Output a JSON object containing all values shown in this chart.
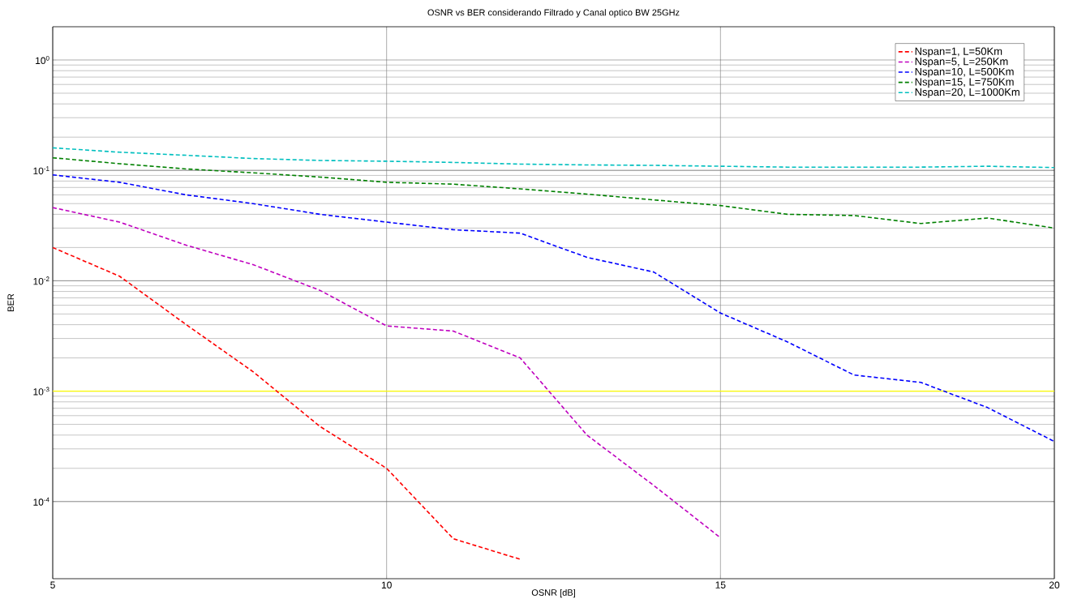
{
  "chart_data": {
    "type": "line",
    "title": "OSNR vs BER considerando Filtrado y Canal optico BW 25GHz",
    "xlabel": "OSNR [dB]",
    "ylabel": "BER",
    "x": [
      5,
      6,
      7,
      8,
      9,
      10,
      11,
      12,
      13,
      14,
      15,
      16,
      17,
      18,
      19,
      20
    ],
    "series": [
      {
        "name": "Nspan=1, L=50Km",
        "color": "#ff0000",
        "values": [
          0.02,
          0.011,
          0.004,
          0.0015,
          0.00048,
          0.0002,
          4.6e-05,
          3e-05,
          null,
          null,
          null,
          null,
          null,
          null,
          null,
          null
        ]
      },
      {
        "name": "Nspan=5, L=250Km",
        "color": "#bf00bf",
        "values": [
          0.046,
          0.034,
          0.021,
          0.014,
          0.0082,
          0.0039,
          0.0035,
          0.002,
          0.0004,
          0.00014,
          4.7e-05,
          null,
          null,
          null,
          null,
          null
        ]
      },
      {
        "name": "Nspan=10, L=500Km",
        "color": "#0000ff",
        "values": [
          0.091,
          0.078,
          0.06,
          0.05,
          0.04,
          0.034,
          0.029,
          0.027,
          0.0163,
          0.012,
          0.0051,
          0.0028,
          0.0014,
          0.0012,
          0.00071,
          0.00035
        ]
      },
      {
        "name": "Nspan=15, L=750Km",
        "color": "#008000",
        "values": [
          0.13,
          0.115,
          0.103,
          0.095,
          0.087,
          0.078,
          0.075,
          0.068,
          0.061,
          0.054,
          0.048,
          0.04,
          0.039,
          0.033,
          0.037,
          0.03
        ]
      },
      {
        "name": "Nspan=20, L=1000Km",
        "color": "#00bfbf",
        "values": [
          0.16,
          0.146,
          0.137,
          0.128,
          0.123,
          0.121,
          0.118,
          0.114,
          0.112,
          0.111,
          0.109,
          0.107,
          0.107,
          0.107,
          0.109,
          0.106
        ]
      }
    ],
    "xlim": [
      5,
      20
    ],
    "ylim": [
      2e-05,
      2
    ],
    "log": "y",
    "xticks": [
      5,
      10,
      15,
      20
    ],
    "yticks": [
      {
        "value": 0.0001,
        "label": "10$^{-4}$"
      },
      {
        "value": 0.001,
        "label": "10$^{-3}$"
      },
      {
        "value": 0.01,
        "label": "10$^{-2}$"
      },
      {
        "value": 0.1,
        "label": "10$^{-1}$"
      },
      {
        "value": 1,
        "label": "10$^{0}$"
      }
    ],
    "ref_lines": [
      {
        "axis": "y",
        "value": 0.001,
        "color": "#ffff00"
      }
    ],
    "grid": true,
    "legend": "top right",
    "line_style": "dashed",
    "marker": "none"
  }
}
